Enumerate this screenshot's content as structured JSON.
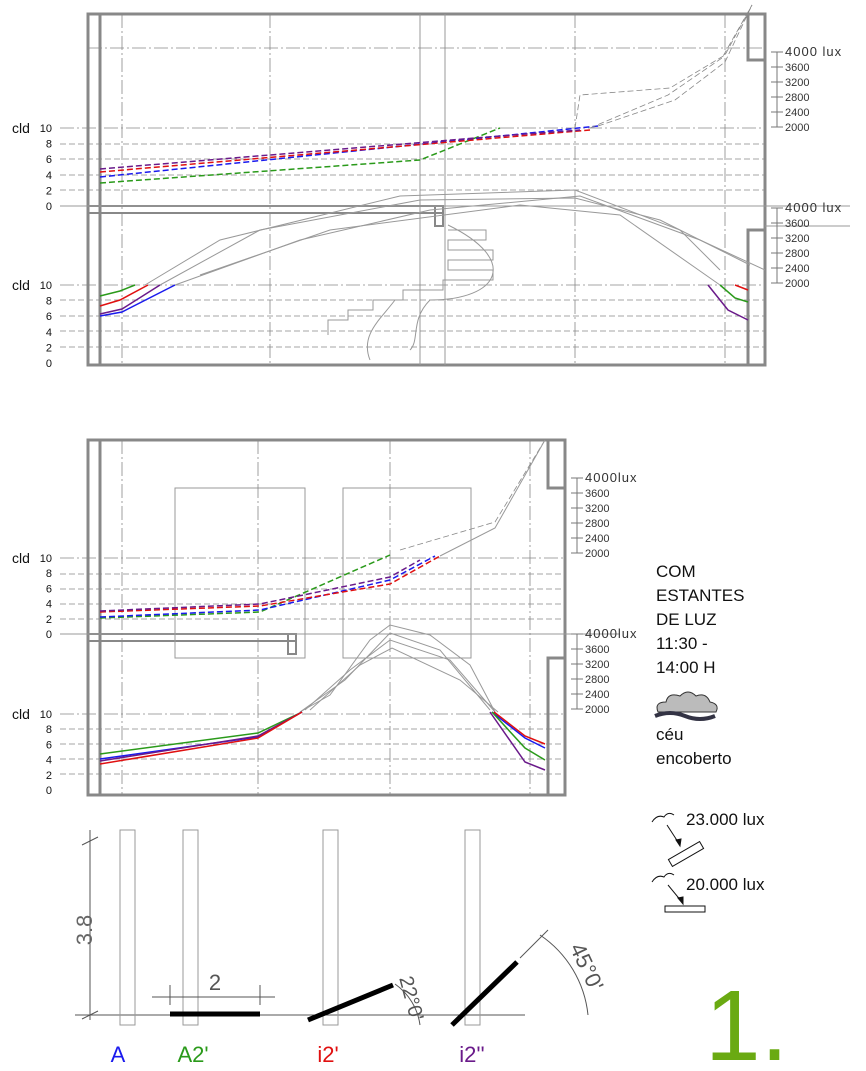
{
  "panels": [
    {
      "upper_axis": {
        "label": "cld",
        "ticks": [
          "10",
          "8",
          "6",
          "4",
          "2",
          "0"
        ]
      },
      "upper_lux": [
        "4000 lux",
        "3600",
        "3200",
        "2800",
        "2400",
        "2000"
      ],
      "lower_axis": {
        "label": "cld",
        "ticks": [
          "10",
          "8",
          "6",
          "4",
          "2",
          "0"
        ]
      },
      "lower_lux": [
        "4000 lux",
        "3600",
        "3200",
        "2800",
        "2400",
        "2000"
      ]
    },
    {
      "upper_axis": {
        "label": "cld",
        "ticks": [
          "10",
          "8",
          "6",
          "4",
          "2",
          "0"
        ]
      },
      "upper_lux": [
        "4000lux",
        "3600",
        "3200",
        "2800",
        "2400",
        "2000"
      ],
      "lower_axis": {
        "label": "cld",
        "ticks": [
          "10",
          "8",
          "6",
          "4",
          "2",
          "0"
        ]
      },
      "lower_lux": [
        "4000lux",
        "3600",
        "3200",
        "2800",
        "2400",
        "2000"
      ]
    }
  ],
  "legend": {
    "lines": [
      "COM",
      "ESTANTES",
      "DE LUZ",
      "11:30 -",
      "14:00 H"
    ],
    "sky": [
      "céu",
      "encoberto"
    ]
  },
  "illuminance": [
    "23.000 lux",
    "20.000 lux"
  ],
  "dimensions": {
    "height": "3.8",
    "width": "2",
    "angle_1": "22°0'",
    "angle_2": "45°0'"
  },
  "cases": [
    "A",
    "A2'",
    "i2'",
    "i2''"
  ],
  "figure_number": "1."
}
